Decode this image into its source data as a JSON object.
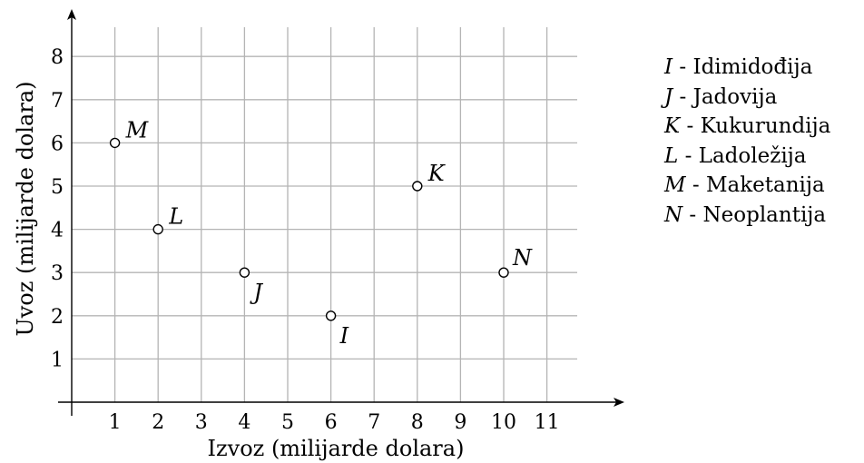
{
  "chart_data": {
    "type": "scatter",
    "xlabel": "Izvoz (milijarde dolara)",
    "ylabel": "Uvoz (milijarde dolara)",
    "xlim": [
      0,
      11
    ],
    "ylim": [
      0,
      8
    ],
    "x_ticks": [
      1,
      2,
      3,
      4,
      5,
      6,
      7,
      8,
      9,
      10,
      11
    ],
    "y_ticks": [
      1,
      2,
      3,
      4,
      5,
      6,
      7,
      8
    ],
    "grid": true,
    "points": [
      {
        "label": "M",
        "x": 1,
        "y": 6
      },
      {
        "label": "L",
        "x": 2,
        "y": 4
      },
      {
        "label": "J",
        "x": 4,
        "y": 3
      },
      {
        "label": "I",
        "x": 6,
        "y": 2
      },
      {
        "label": "K",
        "x": 8,
        "y": 5
      },
      {
        "label": "N",
        "x": 10,
        "y": 3
      }
    ],
    "legend_position": "right",
    "legend": [
      {
        "letter": "I",
        "text": " - Idimidođija"
      },
      {
        "letter": "J",
        "text": " - Jadovija"
      },
      {
        "letter": "K",
        "text": " - Kukurundija"
      },
      {
        "letter": "L",
        "text": " - Ladoležija"
      },
      {
        "letter": "M",
        "text": " - Maketanija"
      },
      {
        "letter": "N",
        "text": " - Neoplantija"
      }
    ]
  }
}
